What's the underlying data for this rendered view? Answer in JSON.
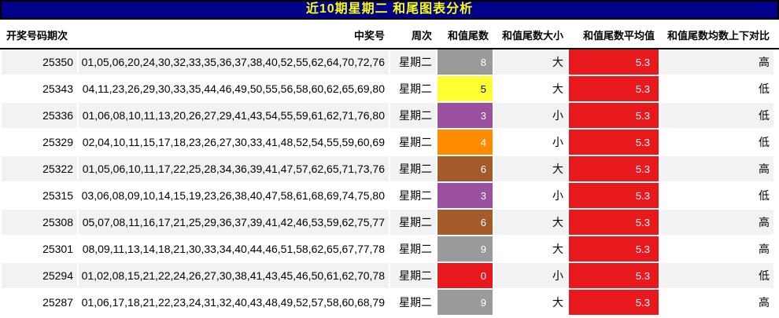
{
  "colors": {
    "title_bg": "#00008b",
    "title_fg": "#ffff00",
    "stripe": "#f2f2f2",
    "row_alt": "#ffffff",
    "avg_bg": "#e8191d",
    "avg_fg": "#ffffff",
    "tail_palette": {
      "gray": "#9a9a9a",
      "yellow": "#ffff33",
      "purple": "#9b51a0",
      "orange": "#ff8c00",
      "brown": "#a55a2a",
      "red": "#e8191d"
    }
  },
  "chart_data": {
    "type": "table",
    "title": "近10期星期二 和尾图表分析",
    "columns": [
      "开奖号码期次",
      "中奖号",
      "周次",
      "和值尾数",
      "和值尾数大小",
      "和值尾数平均值",
      "和值尾数均数上下对比"
    ],
    "rows": [
      {
        "period": "25350",
        "numbers": "01,05,06,20,24,30,32,33,35,36,37,38,40,52,55,62,64,70,72,76",
        "week": "星期二",
        "tail": "8",
        "tail_color": "gray",
        "size": "大",
        "avg": "5.3",
        "compare": "高"
      },
      {
        "period": "25343",
        "numbers": "04,11,23,26,29,30,33,35,44,46,49,50,55,56,58,60,62,65,69,80",
        "week": "星期二",
        "tail": "5",
        "tail_color": "yellow",
        "size": "大",
        "avg": "5.3",
        "compare": "低"
      },
      {
        "period": "25336",
        "numbers": "01,06,08,10,11,13,20,26,27,29,41,43,54,55,59,61,62,71,76,80",
        "week": "星期二",
        "tail": "3",
        "tail_color": "purple",
        "size": "小",
        "avg": "5.3",
        "compare": "低"
      },
      {
        "period": "25329",
        "numbers": "02,04,10,11,15,17,18,23,26,27,30,33,41,48,52,54,55,59,60,69",
        "week": "星期二",
        "tail": "4",
        "tail_color": "orange",
        "size": "小",
        "avg": "5.3",
        "compare": "低"
      },
      {
        "period": "25322",
        "numbers": "01,05,06,10,11,17,22,25,28,34,36,39,41,47,57,62,65,71,73,76",
        "week": "星期二",
        "tail": "6",
        "tail_color": "brown",
        "size": "大",
        "avg": "5.3",
        "compare": "高"
      },
      {
        "period": "25315",
        "numbers": "03,06,08,09,10,14,15,19,23,26,38,40,47,58,61,68,69,74,75,80",
        "week": "星期二",
        "tail": "3",
        "tail_color": "purple",
        "size": "小",
        "avg": "5.3",
        "compare": "低"
      },
      {
        "period": "25308",
        "numbers": "05,07,08,11,16,17,21,25,29,36,37,39,41,42,46,53,59,62,75,77",
        "week": "星期二",
        "tail": "6",
        "tail_color": "brown",
        "size": "大",
        "avg": "5.3",
        "compare": "高"
      },
      {
        "period": "25301",
        "numbers": "08,09,11,13,14,18,21,30,33,34,40,44,46,51,58,62,65,67,77,78",
        "week": "星期二",
        "tail": "9",
        "tail_color": "gray",
        "size": "大",
        "avg": "5.3",
        "compare": "高"
      },
      {
        "period": "25294",
        "numbers": "01,02,08,15,21,22,24,26,27,30,38,41,43,45,46,50,61,62,70,78",
        "week": "星期二",
        "tail": "0",
        "tail_color": "red",
        "size": "小",
        "avg": "5.3",
        "compare": "低"
      },
      {
        "period": "25287",
        "numbers": "01,06,17,18,21,22,23,24,31,32,40,43,48,49,52,57,58,60,68,79",
        "week": "星期二",
        "tail": "9",
        "tail_color": "gray",
        "size": "大",
        "avg": "5.3",
        "compare": "高"
      }
    ]
  }
}
